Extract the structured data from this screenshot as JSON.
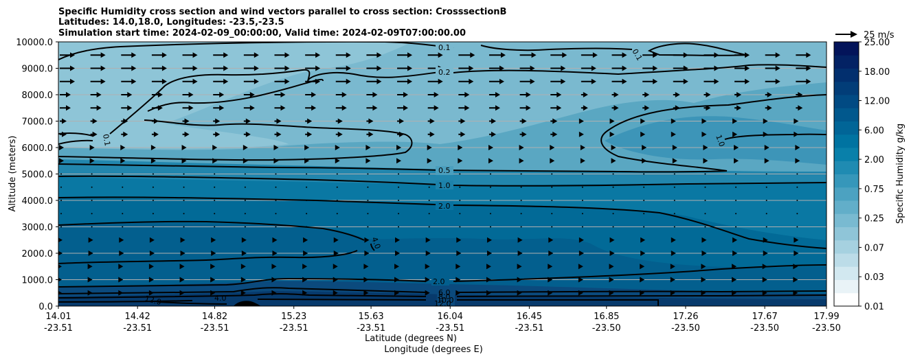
{
  "chart_data": {
    "type": "contour",
    "title_lines": [
      "Specific Humidity cross section and wind vectors parallel to cross section: CrosssectionB",
      "Latitudes: 14.0,18.0, Longitudes: -23.5,-23.5",
      "Simulation start time: 2024-02-09_00:00:00, Valid time: 2024-02-09T07:00:00.00"
    ],
    "ylabel": "Altitude (meters)",
    "xlabel_lines": [
      "Latitude (degrees N)",
      "Longitude (degrees E)"
    ],
    "ylim": [
      0,
      10000
    ],
    "y_ticks": [
      "0.0",
      "1000.0",
      "2000.0",
      "3000.0",
      "4000.0",
      "5000.0",
      "6000.0",
      "7000.0",
      "8000.0",
      "9000.0",
      "10000.0"
    ],
    "x_ticks": [
      {
        "lat": "14.01",
        "lon": "-23.51"
      },
      {
        "lat": "14.42",
        "lon": "-23.51"
      },
      {
        "lat": "14.82",
        "lon": "-23.51"
      },
      {
        "lat": "15.23",
        "lon": "-23.51"
      },
      {
        "lat": "15.63",
        "lon": "-23.51"
      },
      {
        "lat": "16.04",
        "lon": "-23.51"
      },
      {
        "lat": "16.45",
        "lon": "-23.51"
      },
      {
        "lat": "16.85",
        "lon": "-23.50"
      },
      {
        "lat": "17.26",
        "lon": "-23.50"
      },
      {
        "lat": "17.67",
        "lon": "-23.50"
      },
      {
        "lat": "17.99",
        "lon": "-23.50"
      }
    ],
    "colorbar": {
      "label": "Specific Humidity g/kg",
      "tick_labels": [
        "0.01",
        "0.03",
        "0.07",
        "0.25",
        "0.75",
        "2.00",
        "6.00",
        "12.00",
        "18.00",
        "25.00"
      ],
      "n_levels": 20
    },
    "quiver_key": "25 m/s",
    "contour_labels": [
      "0.1",
      "0.2",
      "0.5",
      "1.0",
      "2.0",
      "4.0",
      "2.0",
      "6.0",
      "8.0",
      "10.0",
      "12.0",
      "0.1",
      "0.1",
      "1.0",
      "4.0",
      "12.0"
    ],
    "wind_rows_altitude_m": [
      9500,
      9000,
      8500,
      8000,
      7500,
      7000,
      6500,
      6000,
      5500,
      5000
    ],
    "wind_columns": 25
  }
}
